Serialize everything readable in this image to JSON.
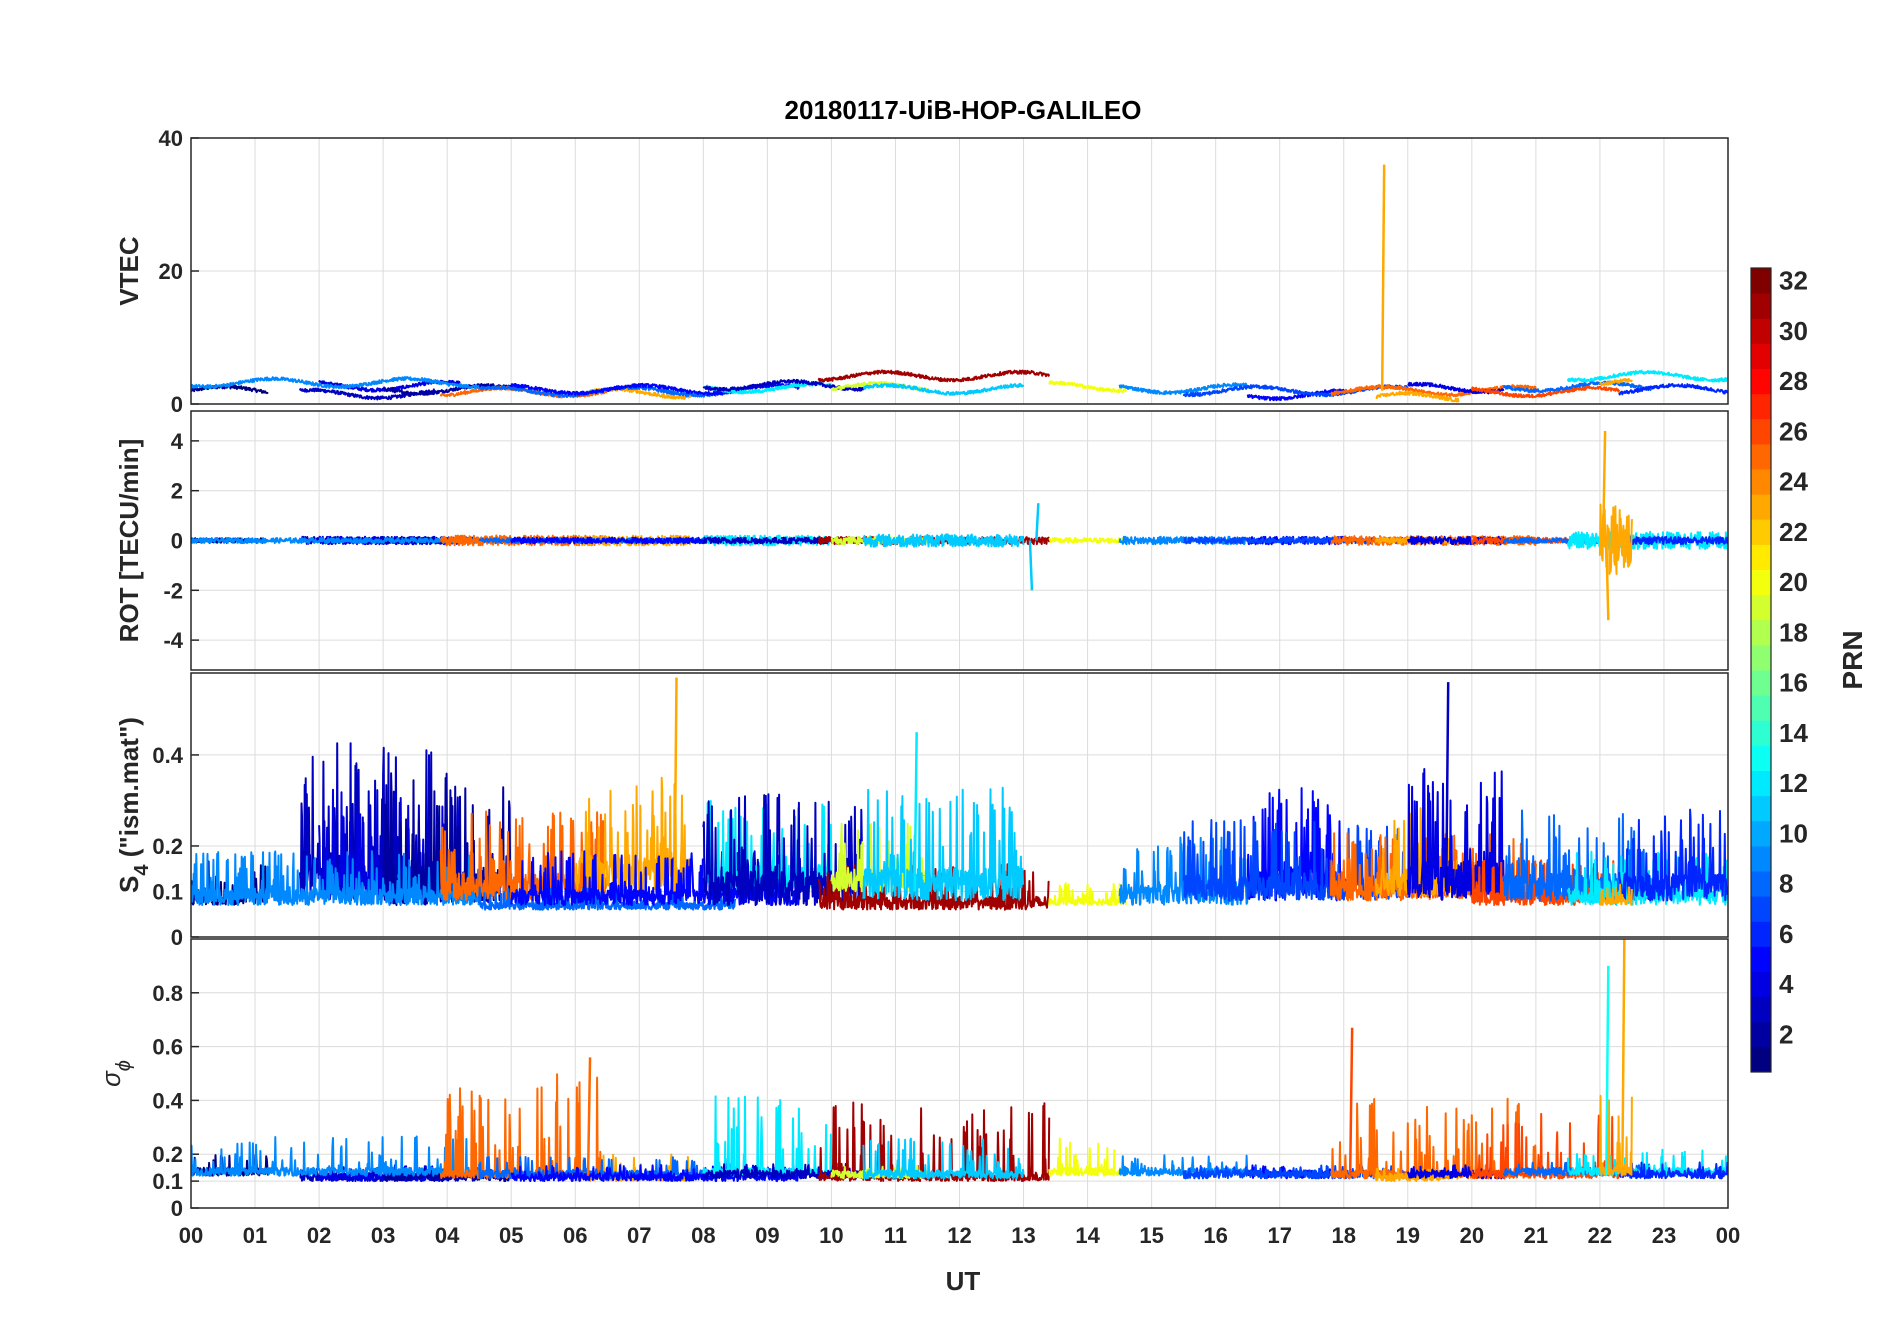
{
  "chart_data": {
    "type": "line",
    "title": "20180117-UiB-HOP-GALILEO",
    "xlabel": "UT",
    "x_ticks": [
      "00",
      "01",
      "02",
      "03",
      "04",
      "05",
      "06",
      "07",
      "08",
      "09",
      "10",
      "11",
      "12",
      "13",
      "14",
      "15",
      "16",
      "17",
      "18",
      "19",
      "20",
      "21",
      "22",
      "23",
      "00"
    ],
    "xlim": [
      0,
      24
    ],
    "grid": true,
    "panels": [
      {
        "name": "vtec",
        "ylabel": "VTEC",
        "ylim": [
          0,
          40
        ],
        "yticks": [
          "0",
          "20",
          "40"
        ],
        "ytick_values": [
          0,
          20,
          40
        ]
      },
      {
        "name": "rot",
        "ylabel": "ROT [TECU/min]",
        "ylim": [
          -5.2,
          5.2
        ],
        "yticks": [
          "-4",
          "-2",
          "0",
          "2",
          "4"
        ],
        "ytick_values": [
          -4,
          -2,
          0,
          2,
          4
        ]
      },
      {
        "name": "s4",
        "ylabel_main": "S",
        "ylabel_sub": "4",
        "ylabel_rest": " (\"ism.mat\")",
        "ylim": [
          0,
          0.58
        ],
        "yticks": [
          "0",
          "0.1",
          "0.2",
          "0.4"
        ],
        "ytick_values": [
          0,
          0.1,
          0.2,
          0.4
        ]
      },
      {
        "name": "sigma",
        "ylabel_main": "σ",
        "ylabel_sub": "ϕ",
        "ylim": [
          0,
          1.0
        ],
        "yticks": [
          "0",
          "0.1",
          "0.2",
          "0.4",
          "0.6",
          "0.8"
        ],
        "ytick_values": [
          0,
          0.1,
          0.2,
          0.4,
          0.6,
          0.8
        ]
      }
    ],
    "colorbar": {
      "label": "PRN",
      "range": [
        1,
        32
      ],
      "ticks": [
        "2",
        "4",
        "6",
        "8",
        "10",
        "12",
        "14",
        "16",
        "18",
        "20",
        "22",
        "24",
        "26",
        "28",
        "30",
        "32"
      ],
      "tick_values": [
        2,
        4,
        6,
        8,
        10,
        12,
        14,
        16,
        18,
        20,
        22,
        24,
        26,
        28,
        30,
        32
      ],
      "colormap": "jet"
    },
    "series": [
      {
        "prn": 1,
        "start": 0.0,
        "end": 1.2,
        "vtec": 2.0,
        "rot_amp": 0.1,
        "s4_base": 0.07,
        "s4_amp": 0.1,
        "sigma_base": 0.12,
        "sigma_amp": 0.08
      },
      {
        "prn": 3,
        "start": 1.7,
        "end": 3.8,
        "vtec": 1.5,
        "rot_amp": 0.15,
        "s4_base": 0.08,
        "s4_amp": 0.35,
        "sigma_base": 0.1,
        "sigma_amp": 0.05
      },
      {
        "prn": 4,
        "start": 2.0,
        "end": 4.2,
        "vtec": 2.7,
        "rot_amp": 0.15,
        "s4_base": 0.08,
        "s4_amp": 0.25,
        "sigma_base": 0.1,
        "sigma_amp": 0.06
      },
      {
        "prn": 2,
        "start": 3.0,
        "end": 5.0,
        "vtec": 2.2,
        "rot_amp": 0.12,
        "s4_base": 0.07,
        "s4_amp": 0.3,
        "sigma_base": 0.1,
        "sigma_amp": 0.05
      },
      {
        "prn": 9,
        "start": 0.0,
        "end": 4.5,
        "vtec": 3.2,
        "rot_amp": 0.1,
        "s4_base": 0.07,
        "s4_amp": 0.12,
        "sigma_base": 0.12,
        "sigma_amp": 0.15
      },
      {
        "prn": 25,
        "start": 3.9,
        "end": 6.5,
        "vtec": 1.8,
        "rot_amp": 0.2,
        "s4_base": 0.08,
        "s4_amp": 0.2,
        "sigma_base": 0.11,
        "sigma_amp": 0.4
      },
      {
        "prn": 23,
        "start": 6.0,
        "end": 7.8,
        "vtec": 1.6,
        "rot_amp": 0.2,
        "s4_base": 0.1,
        "s4_amp": 0.25,
        "sigma_base": 0.1,
        "sigma_amp": 0.1
      },
      {
        "prn": 8,
        "start": 4.5,
        "end": 8.5,
        "vtec": 1.9,
        "rot_amp": 0.1,
        "s4_base": 0.06,
        "s4_amp": 0.05,
        "sigma_base": 0.11,
        "sigma_amp": 0.08
      },
      {
        "prn": 5,
        "start": 5.0,
        "end": 9.5,
        "vtec": 2.2,
        "rot_amp": 0.12,
        "s4_base": 0.07,
        "s4_amp": 0.12,
        "sigma_base": 0.1,
        "sigma_amp": 0.06
      },
      {
        "prn": 12,
        "start": 8.0,
        "end": 10.0,
        "vtec": 2.4,
        "rot_amp": 0.2,
        "s4_base": 0.1,
        "s4_amp": 0.2,
        "sigma_base": 0.12,
        "sigma_amp": 0.3
      },
      {
        "prn": 3,
        "start": 8.0,
        "end": 10.5,
        "vtec": 2.8,
        "rot_amp": 0.12,
        "s4_base": 0.07,
        "s4_amp": 0.25,
        "sigma_base": 0.11,
        "sigma_amp": 0.06
      },
      {
        "prn": 31,
        "start": 9.8,
        "end": 13.4,
        "vtec": 4.2,
        "rot_amp": 0.15,
        "s4_base": 0.06,
        "s4_amp": 0.1,
        "sigma_base": 0.1,
        "sigma_amp": 0.3
      },
      {
        "prn": 19,
        "start": 10.0,
        "end": 11.5,
        "vtec": 2.5,
        "rot_amp": 0.15,
        "s4_base": 0.1,
        "s4_amp": 0.15,
        "sigma_base": 0.11,
        "sigma_amp": 0.05
      },
      {
        "prn": 11,
        "start": 10.5,
        "end": 13.0,
        "vtec": 2.2,
        "rot_amp": 0.25,
        "s4_base": 0.08,
        "s4_amp": 0.25,
        "sigma_base": 0.11,
        "sigma_amp": 0.15
      },
      {
        "prn": 20,
        "start": 13.4,
        "end": 14.6,
        "vtec": 2.6,
        "rot_amp": 0.1,
        "s4_base": 0.07,
        "s4_amp": 0.05,
        "sigma_base": 0.12,
        "sigma_amp": 0.15
      },
      {
        "prn": 9,
        "start": 14.5,
        "end": 16.5,
        "vtec": 2.3,
        "rot_amp": 0.15,
        "s4_base": 0.07,
        "s4_amp": 0.15,
        "sigma_base": 0.12,
        "sigma_amp": 0.08
      },
      {
        "prn": 5,
        "start": 16.5,
        "end": 18.0,
        "vtec": 1.4,
        "rot_amp": 0.15,
        "s4_base": 0.08,
        "s4_amp": 0.25,
        "sigma_base": 0.11,
        "sigma_amp": 0.05
      },
      {
        "prn": 7,
        "start": 15.5,
        "end": 19.0,
        "vtec": 2.0,
        "rot_amp": 0.12,
        "s4_base": 0.08,
        "s4_amp": 0.18,
        "sigma_base": 0.11,
        "sigma_amp": 0.05
      },
      {
        "prn": 25,
        "start": 17.8,
        "end": 21.0,
        "vtec": 2.0,
        "rot_amp": 0.18,
        "s4_base": 0.08,
        "s4_amp": 0.15,
        "sigma_base": 0.11,
        "sigma_amp": 0.3
      },
      {
        "prn": 23,
        "start": 18.5,
        "end": 19.8,
        "vtec": 1.0,
        "rot_amp": 0.12,
        "s4_base": 0.09,
        "s4_amp": 0.2,
        "sigma_base": 0.1,
        "sigma_amp": 0.05
      },
      {
        "prn": 4,
        "start": 19.0,
        "end": 20.5,
        "vtec": 2.4,
        "rot_amp": 0.15,
        "s4_base": 0.08,
        "s4_amp": 0.3,
        "sigma_base": 0.11,
        "sigma_amp": 0.05
      },
      {
        "prn": 26,
        "start": 20.0,
        "end": 22.3,
        "vtec": 1.8,
        "rot_amp": 0.12,
        "s4_base": 0.07,
        "s4_amp": 0.1,
        "sigma_base": 0.11,
        "sigma_amp": 0.25
      },
      {
        "prn": 8,
        "start": 20.5,
        "end": 22.8,
        "vtec": 2.6,
        "rot_amp": 0.1,
        "s4_base": 0.08,
        "s4_amp": 0.2,
        "sigma_base": 0.12,
        "sigma_amp": 0.05
      },
      {
        "prn": 12,
        "start": 21.5,
        "end": 24.0,
        "vtec": 4.2,
        "rot_amp": 0.35,
        "s4_base": 0.07,
        "s4_amp": 0.12,
        "sigma_base": 0.12,
        "sigma_amp": 0.1
      },
      {
        "prn": 6,
        "start": 22.3,
        "end": 24.0,
        "vtec": 2.2,
        "rot_amp": 0.15,
        "s4_base": 0.08,
        "s4_amp": 0.2,
        "sigma_base": 0.11,
        "sigma_amp": 0.06
      },
      {
        "prn": 23,
        "start": 22.0,
        "end": 22.5,
        "vtec": 3.0,
        "rot_amp": 1.5,
        "s4_base": 0.07,
        "s4_amp": 0.05,
        "sigma_base": 0.12,
        "sigma_amp": 0.3
      }
    ],
    "spikes": [
      {
        "panel": "vtec",
        "prn": 23,
        "x": 18.6,
        "y": 36
      },
      {
        "panel": "rot",
        "prn": 23,
        "x": 22.05,
        "y": 4.4
      },
      {
        "panel": "rot",
        "prn": 23,
        "x": 22.1,
        "y": -3.2
      },
      {
        "panel": "rot",
        "prn": 11,
        "x": 13.1,
        "y": -2.0
      },
      {
        "panel": "rot",
        "prn": 11,
        "x": 13.2,
        "y": 1.5
      },
      {
        "panel": "s4",
        "prn": 23,
        "x": 7.55,
        "y": 0.57
      },
      {
        "panel": "s4",
        "prn": 3,
        "x": 19.6,
        "y": 0.56
      },
      {
        "panel": "s4",
        "prn": 12,
        "x": 11.3,
        "y": 0.45
      },
      {
        "panel": "sigma",
        "prn": 23,
        "x": 22.35,
        "y": 1.0
      },
      {
        "panel": "sigma",
        "prn": 13,
        "x": 22.1,
        "y": 0.9
      },
      {
        "panel": "sigma",
        "prn": 26,
        "x": 18.1,
        "y": 0.67
      },
      {
        "panel": "sigma",
        "prn": 25,
        "x": 6.2,
        "y": 0.56
      }
    ]
  }
}
